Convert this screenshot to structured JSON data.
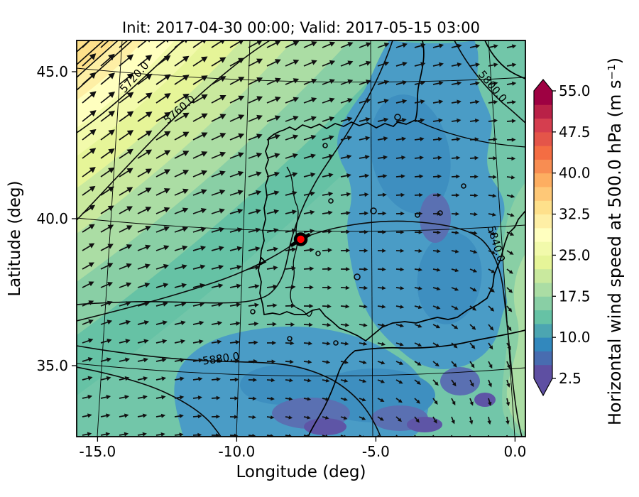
{
  "chart_data": {
    "type": "heatmap",
    "subtype": "filled-contour map with geopotential contours and wind quiver",
    "title": "Init: 2017-04-30 00:00; Valid: 2017-05-15 03:00",
    "xlabel": "Longitude (deg)",
    "ylabel": "Latitude (deg)",
    "xlim": [
      -15.75,
      0.4
    ],
    "ylim": [
      32.6,
      46.1
    ],
    "grid": true,
    "x_ticks": {
      "values": [
        -15.0,
        -10.0,
        -5.0,
        0.0
      ],
      "labels": [
        "-15.0",
        "-10.0",
        "-5.0",
        "0.0"
      ]
    },
    "y_ticks": {
      "values": [
        45.0,
        40.0,
        35.0
      ],
      "labels": [
        "45.0",
        "40.0",
        "35.0"
      ]
    },
    "colorbar": {
      "label": "Horizontal wind speed at 500.0 hPa (m s⁻¹)",
      "tick_labels": [
        "55.0",
        "47.5",
        "40.0",
        "32.5",
        "25.0",
        "17.5",
        "10.0",
        "2.5"
      ],
      "tick_values": [
        55.0,
        47.5,
        40.0,
        32.5,
        25.0,
        17.5,
        10.0,
        2.5
      ],
      "value_range": [
        2.5,
        55.0
      ],
      "band_interval": 2.5,
      "extend": "both",
      "colormap": "Spectral_r",
      "band_colors_low_to_high": [
        "#5e4fa2",
        "#486cb0",
        "#3288bd",
        "#4ca5b1",
        "#66c2a5",
        "#89cfa5",
        "#abdda4",
        "#c9e99e",
        "#e6f598",
        "#f2faab",
        "#ffffbf",
        "#feefa5",
        "#fee08b",
        "#fec877",
        "#fdae61",
        "#f88d52",
        "#f46d43",
        "#e45549",
        "#d53e4f",
        "#b92147",
        "#9e0142"
      ]
    },
    "height_contours": {
      "labels": [
        "5720.0",
        "5760.0",
        "5800.0",
        "5840.0",
        "5880.0"
      ],
      "interval": 40,
      "color": "#000000"
    },
    "wind_arrows": {
      "color": "#000000",
      "style": "quiver grid over map"
    },
    "marker": {
      "lon": -7.7,
      "lat": 39.3,
      "color": "#ff0000",
      "outline": "#000000"
    },
    "field_summary": {
      "high_speed_region": "northwest corner, approx. 30-35 m/s (yellow/orange bands)",
      "mid_speed_region": "broad teal-green band, approx. 12-20 m/s",
      "low_speed_region": "central-east Iberia and south, approx. 2.5-10 m/s (blue/purple)"
    },
    "basemap": "coastlines and borders of the Iberian Peninsula region"
  }
}
